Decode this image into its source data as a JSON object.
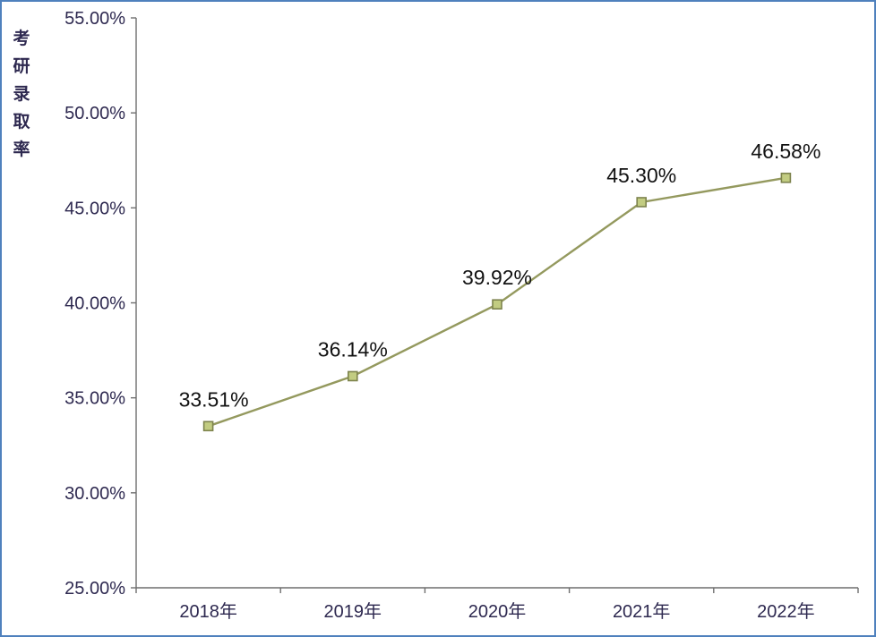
{
  "chart_data": {
    "type": "line",
    "title": "",
    "ylabel": "考研录取率",
    "xlabel": "",
    "categories": [
      "2018年",
      "2019年",
      "2020年",
      "2021年",
      "2022年"
    ],
    "values": [
      33.51,
      36.14,
      39.92,
      45.3,
      46.58
    ],
    "data_labels": [
      "33.51%",
      "36.14%",
      "39.92%",
      "45.30%",
      "46.58%"
    ],
    "ylim": [
      25,
      55
    ],
    "ytick_step": 5,
    "ytick_labels": [
      "25.00%",
      "30.00%",
      "35.00%",
      "40.00%",
      "45.00%",
      "50.00%",
      "55.00%"
    ],
    "grid": false,
    "legend": "none",
    "colors": {
      "line": "#94995e",
      "marker_fill": "#c2cc81",
      "marker_border": "#7d834d",
      "axis": "#6f6f6f",
      "tick_label": "#2e2950",
      "data_label": "#121212",
      "frame_border": "#4f81bd",
      "background": "#ffffff"
    }
  }
}
